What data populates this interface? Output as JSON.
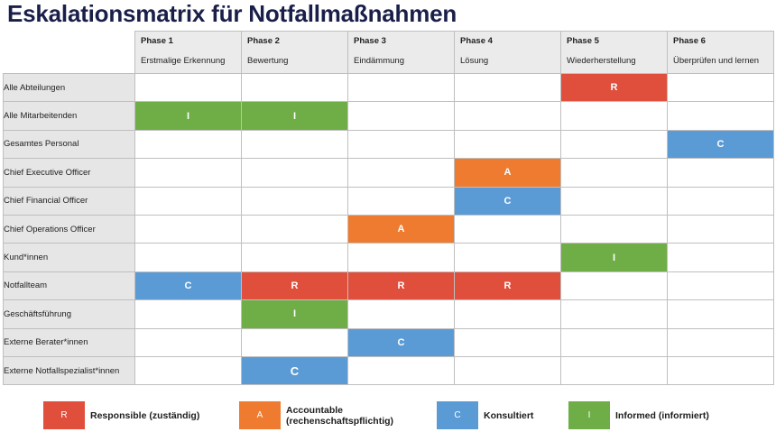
{
  "title": "Eskalationsmatrix für Notfallmaßnahmen",
  "phases": [
    {
      "num": "Phase 1",
      "name": "Erstmalige Erkennung"
    },
    {
      "num": "Phase 2",
      "name": "Bewertung"
    },
    {
      "num": "Phase 3",
      "name": "Eindämmung"
    },
    {
      "num": "Phase 4",
      "name": "Lösung"
    },
    {
      "num": "Phase 5",
      "name": "Wiederherstellung"
    },
    {
      "num": "Phase 6",
      "name": "Überprüfen und lernen"
    }
  ],
  "rows": [
    {
      "role": "Alle Abteilungen",
      "cells": [
        "",
        "",
        "",
        "",
        "R",
        ""
      ]
    },
    {
      "role": "Alle Mitarbeitenden",
      "cells": [
        "I",
        "I",
        "",
        "",
        "",
        ""
      ]
    },
    {
      "role": "Gesamtes Personal",
      "cells": [
        "",
        "",
        "",
        "",
        "",
        "C"
      ]
    },
    {
      "role": "Chief Executive Officer",
      "cells": [
        "",
        "",
        "",
        "A",
        "",
        ""
      ]
    },
    {
      "role": "Chief Financial Officer",
      "cells": [
        "",
        "",
        "",
        "C",
        "",
        ""
      ]
    },
    {
      "role": "Chief Operations Officer",
      "cells": [
        "",
        "",
        "A",
        "",
        "",
        ""
      ]
    },
    {
      "role": "Kund*innen",
      "cells": [
        "",
        "",
        "",
        "",
        "I",
        ""
      ]
    },
    {
      "role": "Notfallteam",
      "cells": [
        "C",
        "R",
        "R",
        "R",
        "",
        ""
      ]
    },
    {
      "role": "Geschäftsführung",
      "cells": [
        "",
        "I",
        "",
        "",
        "",
        ""
      ]
    },
    {
      "role": "Externe Berater*innen",
      "cells": [
        "",
        "",
        "C",
        "",
        "",
        ""
      ]
    },
    {
      "role": "Externe Notfallspezialist*innen",
      "cells": [
        "",
        "C",
        "",
        "",
        "",
        ""
      ]
    }
  ],
  "legend": [
    {
      "code": "R",
      "label": "Responsible (zuständig)",
      "color": "#e04e3c"
    },
    {
      "code": "A",
      "label": "Accountable (rechenschaftspflichtig)",
      "color": "#ee7b30"
    },
    {
      "code": "C",
      "label": "Konsultiert",
      "color": "#5b9bd5"
    },
    {
      "code": "I",
      "label": "Informed (informiert)",
      "color": "#6fae47"
    }
  ]
}
